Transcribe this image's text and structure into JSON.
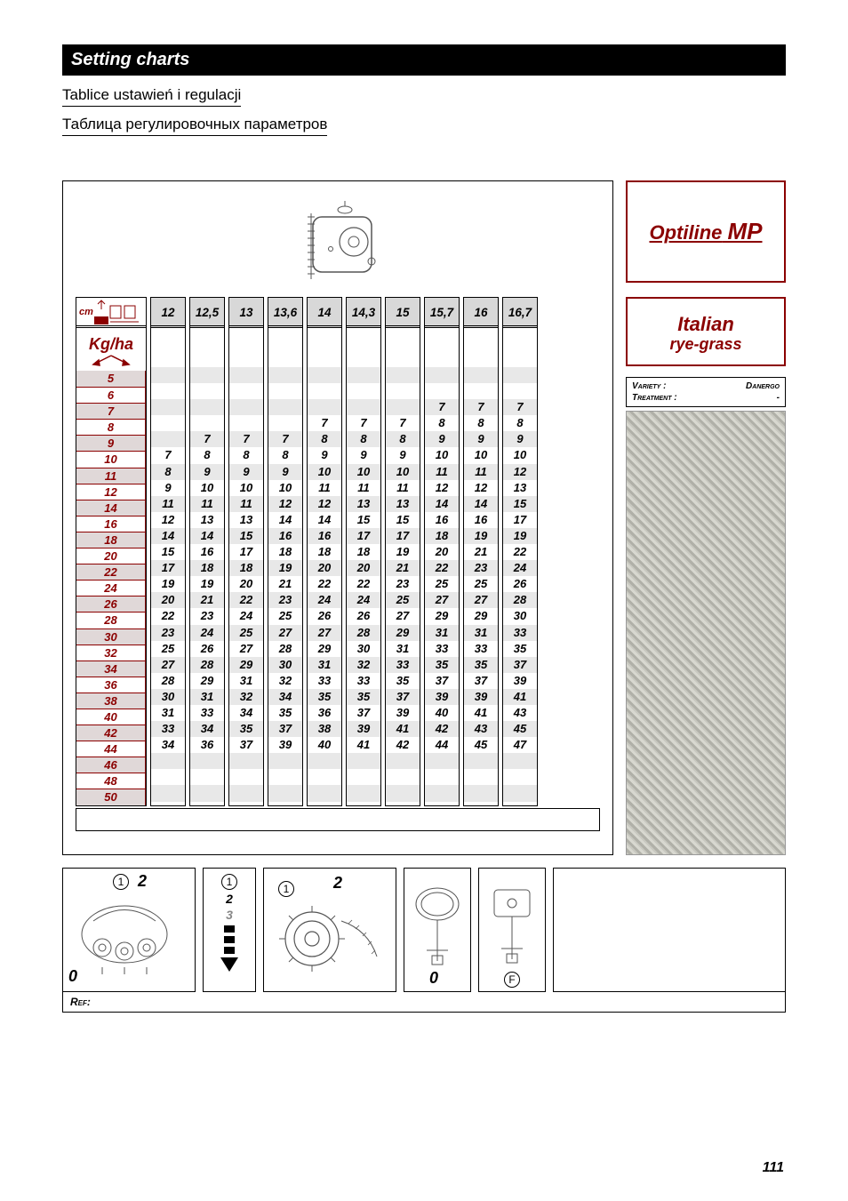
{
  "header": {
    "title": "Setting charts",
    "subtitle_pl": "Tablice ustawień i regulacji",
    "subtitle_ru": "Таблица регулировочных параметров"
  },
  "brand": {
    "line1": "Optiline",
    "line2": "MP"
  },
  "crop": {
    "line1": "Italian",
    "line2": "rye-grass"
  },
  "variety": {
    "variety_label": "Variety :",
    "variety_value": "Danergo",
    "treatment_label": "Treatment :",
    "treatment_value": "-"
  },
  "chart": {
    "row_header_unit_top": "cm",
    "row_header_unit": "Kg/ha",
    "column_headers": [
      "12",
      "12,5",
      "13",
      "13,6",
      "14",
      "14,3",
      "15",
      "15,7",
      "16",
      "16,7"
    ],
    "kg_rows": [
      "5",
      "6",
      "7",
      "8",
      "9",
      "10",
      "11",
      "12",
      "14",
      "16",
      "18",
      "20",
      "22",
      "24",
      "26",
      "28",
      "30",
      "32",
      "34",
      "36",
      "38",
      "40",
      "42",
      "44",
      "46",
      "48",
      "50"
    ],
    "shaded_kg_rows": [
      "5",
      "7",
      "9",
      "11",
      "14",
      "18",
      "22",
      "26",
      "30",
      "34",
      "38",
      "42",
      "46",
      "50"
    ],
    "columns": [
      {
        "start_index": 5,
        "values": [
          "7",
          "8",
          "9",
          "11",
          "12",
          "14",
          "15",
          "17",
          "19",
          "20",
          "22",
          "23",
          "25",
          "27",
          "28",
          "30",
          "31",
          "33",
          "34"
        ]
      },
      {
        "start_index": 4,
        "values": [
          "7",
          "8",
          "9",
          "10",
          "11",
          "13",
          "14",
          "16",
          "18",
          "19",
          "21",
          "23",
          "24",
          "26",
          "28",
          "29",
          "31",
          "33",
          "34",
          "36"
        ]
      },
      {
        "start_index": 4,
        "values": [
          "7",
          "8",
          "9",
          "10",
          "11",
          "13",
          "15",
          "17",
          "18",
          "20",
          "22",
          "24",
          "25",
          "27",
          "29",
          "31",
          "32",
          "34",
          "35",
          "37"
        ]
      },
      {
        "start_index": 4,
        "values": [
          "7",
          "8",
          "9",
          "10",
          "12",
          "14",
          "16",
          "18",
          "19",
          "21",
          "23",
          "25",
          "27",
          "28",
          "30",
          "32",
          "34",
          "35",
          "37",
          "39"
        ]
      },
      {
        "start_index": 3,
        "values": [
          "7",
          "8",
          "9",
          "10",
          "11",
          "12",
          "14",
          "16",
          "18",
          "20",
          "22",
          "24",
          "26",
          "27",
          "29",
          "31",
          "33",
          "35",
          "36",
          "38",
          "40"
        ]
      },
      {
        "start_index": 3,
        "values": [
          "7",
          "8",
          "9",
          "10",
          "11",
          "13",
          "15",
          "17",
          "18",
          "20",
          "22",
          "24",
          "26",
          "28",
          "30",
          "32",
          "33",
          "35",
          "37",
          "39",
          "41"
        ]
      },
      {
        "start_index": 3,
        "values": [
          "7",
          "8",
          "9",
          "10",
          "11",
          "13",
          "15",
          "17",
          "19",
          "21",
          "23",
          "25",
          "27",
          "29",
          "31",
          "33",
          "35",
          "37",
          "39",
          "41",
          "42"
        ]
      },
      {
        "start_index": 2,
        "values": [
          "7",
          "8",
          "9",
          "10",
          "11",
          "12",
          "14",
          "16",
          "18",
          "20",
          "22",
          "25",
          "27",
          "29",
          "31",
          "33",
          "35",
          "37",
          "39",
          "40",
          "42",
          "44"
        ]
      },
      {
        "start_index": 2,
        "values": [
          "7",
          "8",
          "9",
          "10",
          "11",
          "12",
          "14",
          "16",
          "19",
          "21",
          "23",
          "25",
          "27",
          "29",
          "31",
          "33",
          "35",
          "37",
          "39",
          "41",
          "43",
          "45"
        ]
      },
      {
        "start_index": 2,
        "values": [
          "7",
          "8",
          "9",
          "10",
          "12",
          "13",
          "15",
          "17",
          "19",
          "22",
          "24",
          "26",
          "28",
          "30",
          "33",
          "35",
          "37",
          "39",
          "41",
          "43",
          "45",
          "47"
        ]
      }
    ],
    "shade_row_color": "#e8e8e8",
    "header_bg": "#d8d8d8",
    "accent_color": "#8b0000"
  },
  "bottom": {
    "panel1": {
      "badge_o": "0",
      "badge_1": "1",
      "badge_2": "2"
    },
    "panel2": {
      "n1": "1",
      "n2": "2",
      "n3": "3"
    },
    "panel3": {
      "badge_1": "1",
      "badge_2": "2"
    },
    "panel4": {
      "badge_o": "0"
    },
    "panel5": {
      "badge_f": "F"
    },
    "ref_label": "Ref:"
  },
  "page_number": "111"
}
